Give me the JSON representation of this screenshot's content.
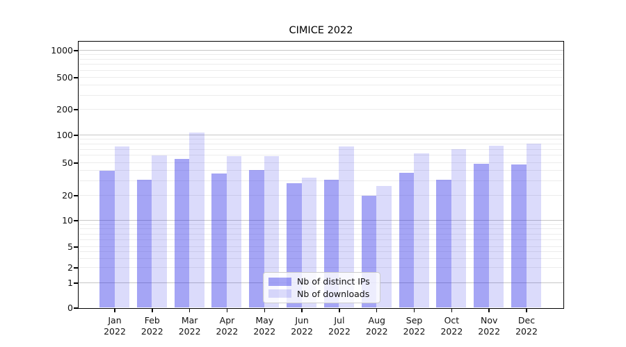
{
  "title": "CIMICE 2022",
  "chart_data": {
    "type": "bar",
    "title": "CIMICE 2022",
    "yscale": "symlog",
    "categories": [
      "Jan",
      "Feb",
      "Mar",
      "Apr",
      "May",
      "Jun",
      "Jul",
      "Aug",
      "Sep",
      "Oct",
      "Nov",
      "Dec"
    ],
    "category_year": "2022",
    "series": [
      {
        "name": "Nb of distinct IPs",
        "color": "rgba(40,40,230,0.42)",
        "values": [
          40,
          31,
          55,
          37,
          41,
          28,
          31,
          20,
          38,
          31,
          49,
          48
        ]
      },
      {
        "name": "Nb of downloads",
        "color": "rgba(40,40,230,0.17)",
        "values": [
          75,
          60,
          107,
          59,
          59,
          33,
          75,
          26,
          63,
          70,
          77,
          80
        ]
      }
    ],
    "ytick_labels": [
      "0",
      "1",
      "2",
      "5",
      "10",
      "20",
      "50",
      "100",
      "200",
      "500",
      "1000"
    ],
    "ylim": [
      0,
      1280
    ],
    "xlabel": "",
    "ylabel": "",
    "grid": "both",
    "legend_position": "lower center"
  },
  "legend": {
    "items": [
      {
        "label": "Nb of distinct IPs",
        "color": "rgba(40,40,230,0.42)"
      },
      {
        "label": "Nb of downloads",
        "color": "rgba(40,40,230,0.17)"
      }
    ]
  },
  "colors": {
    "background": "#ffffff",
    "bar_dark": "rgba(40,40,230,0.42)",
    "bar_light": "rgba(40,40,230,0.17)",
    "grid_major": "#c6c6c6",
    "grid_minor": "#ececec",
    "axis": "#000000",
    "legend_border": "#cccccc"
  }
}
